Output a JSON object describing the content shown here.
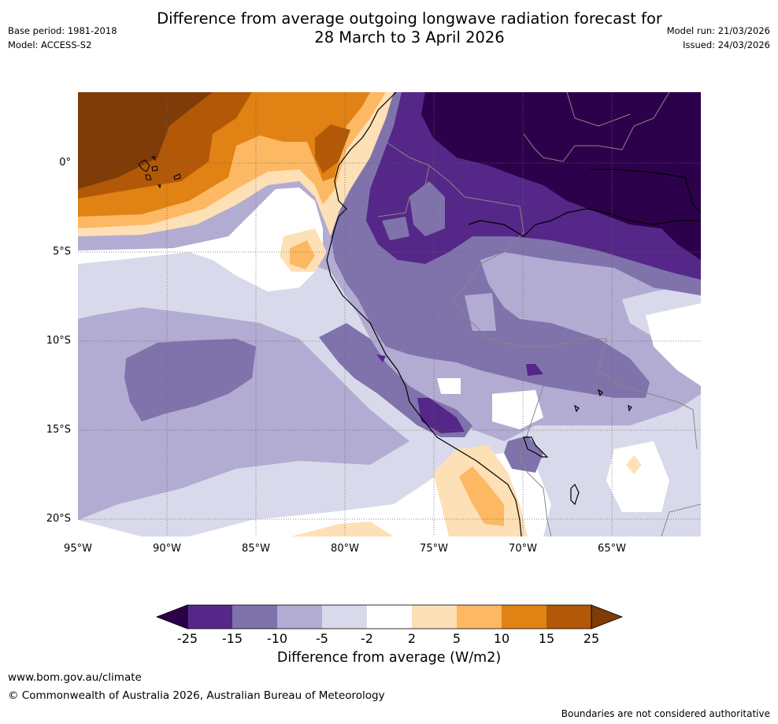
{
  "title": {
    "line1": "Difference from average outgoing longwave radiation forecast for",
    "line2": "28 March to 3 April 2026"
  },
  "meta": {
    "base_period": "Base period: 1981-2018",
    "model": "Model: ACCESS-S2",
    "model_run": "Model run: 21/03/2026",
    "issued": "Issued: 24/03/2026"
  },
  "map": {
    "lat_labels": [
      "0°",
      "5°S",
      "10°S",
      "15°S",
      "20°S"
    ],
    "lon_labels": [
      "95°W",
      "90°W",
      "85°W",
      "80°W",
      "75°W",
      "70°W",
      "65°W"
    ]
  },
  "colorbar": {
    "title": "Difference from average (W/m2)",
    "tick_labels": [
      "-25",
      "-15",
      "-10",
      "-5",
      "-2",
      "2",
      "5",
      "10",
      "15",
      "25"
    ],
    "colors": [
      "#2d004b",
      "#542788",
      "#8073ac",
      "#b2abd2",
      "#d8daeb",
      "#ffffff",
      "#fee0b6",
      "#fdb863",
      "#e08214",
      "#b35806",
      "#7f3b08"
    ]
  },
  "footer": {
    "url": "www.bom.gov.au/climate",
    "copyright": "© Commonwealth of Australia 2026, Australian Bureau of Meteorology",
    "disclaimer": "Boundaries are not considered authoritative"
  }
}
